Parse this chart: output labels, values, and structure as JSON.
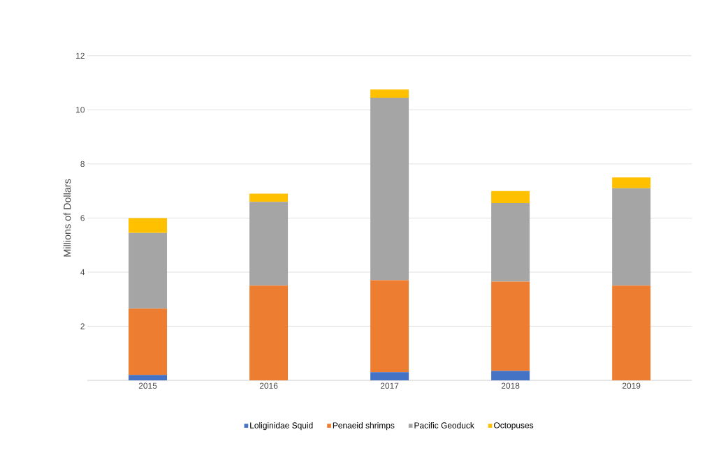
{
  "chart_data": {
    "type": "bar",
    "stacked": true,
    "ylabel": "Millions of Dollars",
    "categories": [
      "2015",
      "2016",
      "2017",
      "2018",
      "2019"
    ],
    "series": [
      {
        "name": "Loliginidae Squid",
        "color": "#4472c4",
        "values": [
          0.2,
          0,
          0.3,
          0.35,
          0
        ]
      },
      {
        "name": "Penaeid shrimps",
        "color": "#ed7d31",
        "values": [
          2.45,
          3.5,
          3.4,
          3.3,
          3.5
        ]
      },
      {
        "name": "Pacific Geoduck",
        "color": "#a5a5a5",
        "values": [
          2.8,
          3.1,
          6.75,
          2.9,
          3.6
        ]
      },
      {
        "name": "Octopuses",
        "color": "#ffc000",
        "values": [
          0.55,
          0.3,
          0.3,
          0.45,
          0.4
        ]
      }
    ],
    "ylim": [
      0,
      12
    ],
    "yticks": [
      2,
      4,
      6,
      8,
      10,
      12
    ],
    "grid": "y",
    "legend": "bottom"
  }
}
